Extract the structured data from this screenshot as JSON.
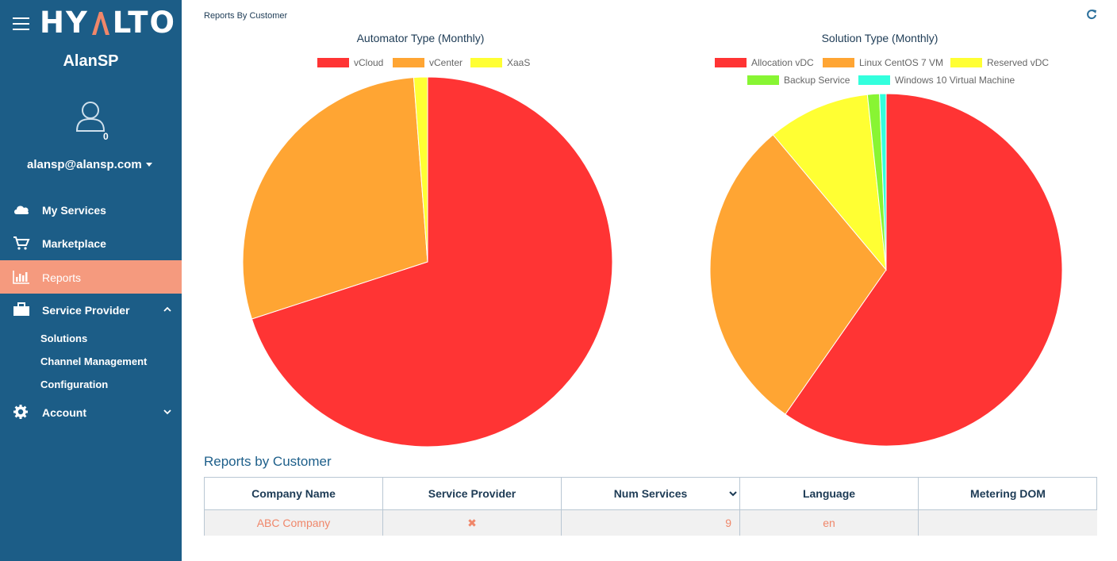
{
  "app": {
    "logo_text_left": "HY",
    "logo_text_right": "LTO"
  },
  "user": {
    "name": "AlanSP",
    "notification_count": "0",
    "email": "alansp@alansp.com"
  },
  "nav": {
    "my_services": "My Services",
    "marketplace": "Marketplace",
    "reports": "Reports",
    "service_provider": "Service Provider",
    "solutions": "Solutions",
    "channel_management": "Channel Management",
    "configuration": "Configuration",
    "account": "Account"
  },
  "page": {
    "breadcrumb": "Reports By Customer",
    "section_title": "Reports by Customer"
  },
  "charts": {
    "automator_title": "Automator Type (Monthly)",
    "solution_title": "Solution Type (Monthly)"
  },
  "chart_data": [
    {
      "type": "pie",
      "title": "Automator Type (Monthly)",
      "labels": [
        "vCloud",
        "vCenter",
        "XaaS"
      ],
      "values": [
        70,
        28.8,
        1.2
      ],
      "colors": [
        "#ff3434",
        "#ffa533",
        "#ffff33"
      ],
      "legend_position": "top"
    },
    {
      "type": "pie",
      "title": "Solution Type (Monthly)",
      "labels": [
        "Allocation vDC",
        "Linux CentOS 7 VM",
        "Reserved vDC",
        "Backup Service",
        "Windows 10 Virtual Machine"
      ],
      "values": [
        59.7,
        29.2,
        9.4,
        1.1,
        0.6
      ],
      "colors": [
        "#ff3434",
        "#ffa533",
        "#ffff33",
        "#88f533",
        "#33ffdd"
      ],
      "legend_position": "top"
    }
  ],
  "table": {
    "headers": [
      "Company Name",
      "Service Provider",
      "Num Services",
      "Language",
      "Metering DOM"
    ],
    "rows": [
      {
        "company": "ABC Company",
        "service_provider": "✖",
        "num_services": "9",
        "language": "en",
        "metering_dom": ""
      }
    ]
  }
}
